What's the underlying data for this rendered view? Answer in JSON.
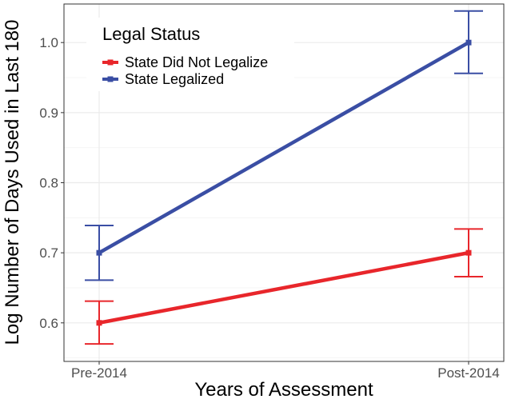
{
  "chart_data": {
    "type": "line",
    "categories": [
      "Pre-2014",
      "Post-2014"
    ],
    "xlabel": "Years of Assessment",
    "ylabel": "Log Number of Days Used in Last 180",
    "ylim": [
      0.545,
      1.055
    ],
    "yticks": [
      0.6,
      0.7,
      0.8,
      0.9,
      1.0
    ],
    "ytick_labels": [
      "0.6",
      "0.7",
      "0.8",
      "0.9",
      "1.0"
    ],
    "grid": true,
    "legend": {
      "title": "Legal Status",
      "placement": "top-left"
    },
    "series": [
      {
        "name": "State Did Not Legalize",
        "color": "#e8262b",
        "values": [
          0.6,
          0.7
        ],
        "lower": [
          0.57,
          0.666
        ],
        "upper": [
          0.631,
          0.734
        ]
      },
      {
        "name": "State Legalized",
        "color": "#3a4ea4",
        "values": [
          0.7,
          1.0
        ],
        "lower": [
          0.661,
          0.956
        ],
        "upper": [
          0.739,
          1.045
        ]
      }
    ]
  }
}
